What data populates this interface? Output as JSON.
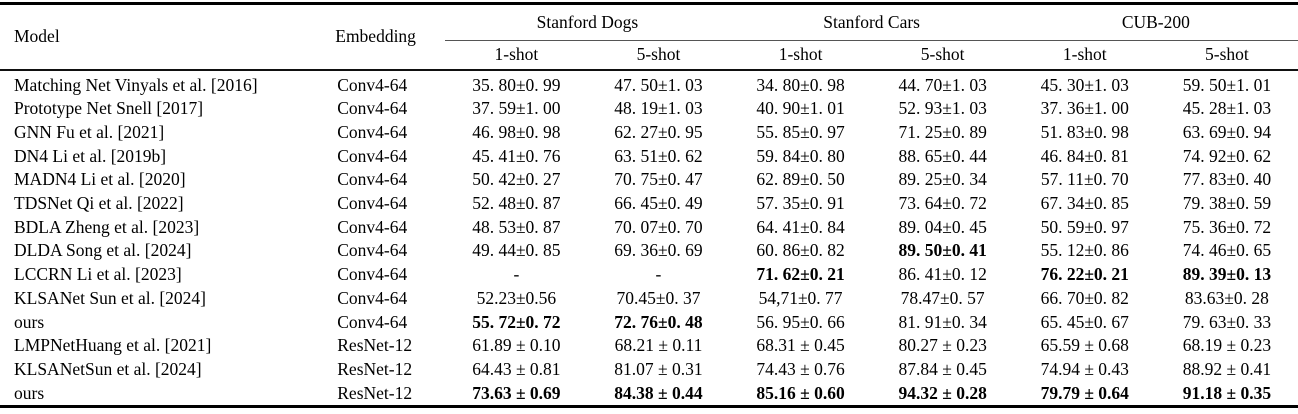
{
  "colors": {
    "background": "#ffffff",
    "text": "#000000",
    "rule": "#000000",
    "cmidrule": "#555555"
  },
  "table": {
    "col_model": "Model",
    "col_embedding": "Embedding",
    "groups": [
      {
        "label": "Stanford Dogs"
      },
      {
        "label": "Stanford Cars"
      },
      {
        "label": "CUB-200"
      }
    ],
    "subcols": [
      "1-shot",
      "5-shot"
    ],
    "rows": [
      {
        "model": "Matching Net Vinyals et al. [2016]",
        "embedding": "Conv4-64",
        "values": [
          {
            "text": "35. 80±0. 99",
            "bold": false
          },
          {
            "text": "47. 50±1. 03",
            "bold": false
          },
          {
            "text": "34. 80±0. 98",
            "bold": false
          },
          {
            "text": "44. 70±1. 03",
            "bold": false
          },
          {
            "text": "45. 30±1. 03",
            "bold": false
          },
          {
            "text": "59. 50±1. 01",
            "bold": false
          }
        ]
      },
      {
        "model": "Prototype Net Snell [2017]",
        "embedding": "Conv4-64",
        "values": [
          {
            "text": "37. 59±1. 00",
            "bold": false
          },
          {
            "text": "48. 19±1. 03",
            "bold": false
          },
          {
            "text": "40. 90±1. 01",
            "bold": false
          },
          {
            "text": "52. 93±1. 03",
            "bold": false
          },
          {
            "text": "37. 36±1. 00",
            "bold": false
          },
          {
            "text": "45. 28±1. 03",
            "bold": false
          }
        ]
      },
      {
        "model": "GNN Fu et al. [2021]",
        "embedding": "Conv4-64",
        "values": [
          {
            "text": "46. 98±0. 98",
            "bold": false
          },
          {
            "text": "62. 27±0. 95",
            "bold": false
          },
          {
            "text": "55. 85±0. 97",
            "bold": false
          },
          {
            "text": "71. 25±0. 89",
            "bold": false
          },
          {
            "text": "51. 83±0. 98",
            "bold": false
          },
          {
            "text": "63. 69±0. 94",
            "bold": false
          }
        ]
      },
      {
        "model": "DN4 Li et al. [2019b]",
        "embedding": "Conv4-64",
        "values": [
          {
            "text": "45. 41±0. 76",
            "bold": false
          },
          {
            "text": "63. 51±0. 62",
            "bold": false
          },
          {
            "text": "59. 84±0. 80",
            "bold": false
          },
          {
            "text": "88. 65±0. 44",
            "bold": false
          },
          {
            "text": "46. 84±0. 81",
            "bold": false
          },
          {
            "text": "74. 92±0. 62",
            "bold": false
          }
        ]
      },
      {
        "model": "MADN4 Li et al. [2020]",
        "embedding": "Conv4-64",
        "values": [
          {
            "text": "50. 42±0. 27",
            "bold": false
          },
          {
            "text": "70. 75±0. 47",
            "bold": false
          },
          {
            "text": "62. 89±0. 50",
            "bold": false
          },
          {
            "text": "89. 25±0. 34",
            "bold": false
          },
          {
            "text": "57. 11±0. 70",
            "bold": false
          },
          {
            "text": "77. 83±0. 40",
            "bold": false
          }
        ]
      },
      {
        "model": "TDSNet Qi et al. [2022]",
        "embedding": "Conv4-64",
        "values": [
          {
            "text": "52. 48±0. 87",
            "bold": false
          },
          {
            "text": "66. 45±0. 49",
            "bold": false
          },
          {
            "text": "57. 35±0. 91",
            "bold": false
          },
          {
            "text": "73. 64±0. 72",
            "bold": false
          },
          {
            "text": "67. 34±0. 85",
            "bold": false
          },
          {
            "text": "79. 38±0. 59",
            "bold": false
          }
        ]
      },
      {
        "model": "BDLA Zheng et al. [2023]",
        "embedding": "Conv4-64",
        "values": [
          {
            "text": "48. 53±0. 87",
            "bold": false
          },
          {
            "text": "70. 07±0. 70",
            "bold": false
          },
          {
            "text": "64. 41±0. 84",
            "bold": false
          },
          {
            "text": "89. 04±0. 45",
            "bold": false
          },
          {
            "text": "50. 59±0. 97",
            "bold": false
          },
          {
            "text": "75. 36±0. 72",
            "bold": false
          }
        ]
      },
      {
        "model": "DLDA Song et al. [2024]",
        "embedding": "Conv4-64",
        "values": [
          {
            "text": "49. 44±0. 85",
            "bold": false
          },
          {
            "text": "69. 36±0. 69",
            "bold": false
          },
          {
            "text": "60. 86±0. 82",
            "bold": false
          },
          {
            "text": "89. 50±0. 41",
            "bold": true
          },
          {
            "text": "55. 12±0. 86",
            "bold": false
          },
          {
            "text": "74. 46±0. 65",
            "bold": false
          }
        ]
      },
      {
        "model": "LCCRN Li et al. [2023]",
        "embedding": "Conv4-64",
        "values": [
          {
            "text": "-",
            "bold": false
          },
          {
            "text": "-",
            "bold": false
          },
          {
            "text": "71. 62±0. 21",
            "bold": true
          },
          {
            "text": "86. 41±0. 12",
            "bold": false
          },
          {
            "text": "76. 22±0. 21",
            "bold": true
          },
          {
            "text": "89. 39±0. 13",
            "bold": true
          }
        ]
      },
      {
        "model": "KLSANet Sun et al. [2024]",
        "embedding": "Conv4-64",
        "values": [
          {
            "text": "52.23±0.56",
            "bold": false
          },
          {
            "text": "70.45±0. 37",
            "bold": false
          },
          {
            "text": "54,71±0. 77",
            "bold": false
          },
          {
            "text": "78.47±0. 57",
            "bold": false
          },
          {
            "text": "66. 70±0. 82",
            "bold": false
          },
          {
            "text": "83.63±0. 28",
            "bold": false
          }
        ]
      },
      {
        "model": "ours",
        "embedding": "Conv4-64",
        "values": [
          {
            "text": "55. 72±0. 72",
            "bold": true
          },
          {
            "text": "72. 76±0. 48",
            "bold": true
          },
          {
            "text": "56. 95±0. 66",
            "bold": false
          },
          {
            "text": "81. 91±0. 34",
            "bold": false
          },
          {
            "text": "65. 45±0. 67",
            "bold": false
          },
          {
            "text": "79. 63±0. 33",
            "bold": false
          }
        ]
      },
      {
        "model": "LMPNetHuang et al. [2021]",
        "embedding": "ResNet-12",
        "values": [
          {
            "text": "61.89 ± 0.10",
            "bold": false
          },
          {
            "text": "68.21 ± 0.11",
            "bold": false
          },
          {
            "text": "68.31 ± 0.45",
            "bold": false
          },
          {
            "text": "80.27 ± 0.23",
            "bold": false
          },
          {
            "text": "65.59 ± 0.68",
            "bold": false
          },
          {
            "text": "68.19 ± 0.23",
            "bold": false
          }
        ]
      },
      {
        "model": "KLSANetSun et al. [2024]",
        "embedding": "ResNet-12",
        "values": [
          {
            "text": "64.43 ± 0.81",
            "bold": false
          },
          {
            "text": "81.07 ± 0.31",
            "bold": false
          },
          {
            "text": "74.43 ± 0.76",
            "bold": false
          },
          {
            "text": "87.84 ± 0.45",
            "bold": false
          },
          {
            "text": "74.94 ± 0.43",
            "bold": false
          },
          {
            "text": "88.92 ± 0.41",
            "bold": false
          }
        ]
      },
      {
        "model": "ours",
        "embedding": "ResNet-12",
        "values": [
          {
            "text": "73.63 ± 0.69",
            "bold": true
          },
          {
            "text": "84.38 ± 0.44",
            "bold": true
          },
          {
            "text": "85.16 ± 0.60",
            "bold": true
          },
          {
            "text": "94.32 ± 0.28",
            "bold": true
          },
          {
            "text": "79.79 ± 0.64",
            "bold": true
          },
          {
            "text": "91.18 ± 0.35",
            "bold": true
          }
        ]
      }
    ]
  }
}
